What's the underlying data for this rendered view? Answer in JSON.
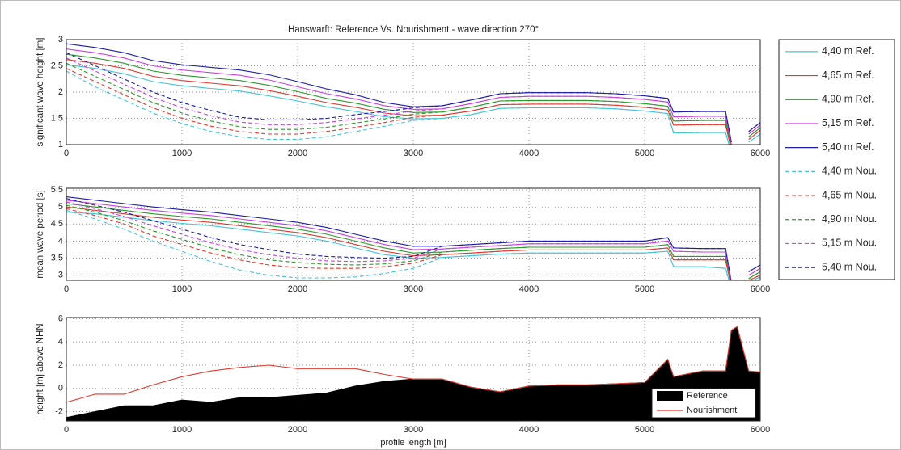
{
  "chart_data": [
    {
      "type": "line",
      "title": "Hanswarft: Reference Vs. Nourishment - wave direction 270°",
      "y_label": "significant wave height [m]",
      "legend": "outside right",
      "grid": true,
      "xlim": [
        0,
        6000
      ],
      "xticks": [
        0,
        1000,
        2000,
        3000,
        4000,
        5000,
        6000
      ],
      "ylim": [
        1,
        3
      ],
      "yticks": [
        1,
        1.5,
        2,
        2.5,
        3
      ],
      "x": [
        0,
        250,
        500,
        750,
        1000,
        1250,
        1500,
        1750,
        2000,
        2250,
        2500,
        2750,
        3000,
        3250,
        3500,
        3750,
        4000,
        4250,
        4500,
        4750,
        5000,
        5200,
        5250,
        5500,
        5700,
        5750,
        5800,
        5900,
        6000
      ],
      "series": [
        {
          "name": "4,40 m Ref.",
          "color": "#45c3dc",
          "line_style": "solid",
          "values": [
            2.52,
            2.45,
            2.35,
            2.2,
            2.12,
            2.07,
            2.02,
            1.93,
            1.83,
            1.72,
            1.63,
            1.53,
            1.49,
            1.5,
            1.57,
            1.69,
            1.7,
            1.7,
            1.7,
            1.68,
            1.64,
            1.59,
            1.22,
            1.23,
            1.23,
            0.85,
            null,
            1.05,
            1.2
          ]
        },
        {
          "name": "4,65 m Ref.",
          "color": "#e03a2e",
          "line_style": "solid",
          "values": [
            2.62,
            2.55,
            2.45,
            2.3,
            2.22,
            2.17,
            2.12,
            2.03,
            1.92,
            1.8,
            1.71,
            1.6,
            1.55,
            1.56,
            1.64,
            1.76,
            1.77,
            1.77,
            1.77,
            1.75,
            1.71,
            1.66,
            1.37,
            1.38,
            1.38,
            0.9,
            null,
            1.1,
            1.27
          ]
        },
        {
          "name": "4,90 m Ref.",
          "color": "#2a9a2a",
          "line_style": "solid",
          "values": [
            2.72,
            2.65,
            2.55,
            2.4,
            2.32,
            2.27,
            2.22,
            2.13,
            2.01,
            1.88,
            1.79,
            1.67,
            1.61,
            1.62,
            1.71,
            1.83,
            1.84,
            1.84,
            1.84,
            1.82,
            1.78,
            1.73,
            1.45,
            1.46,
            1.46,
            0.95,
            null,
            1.15,
            1.32
          ]
        },
        {
          "name": "5,15 m Ref.",
          "color": "#cc3ee0",
          "line_style": "solid",
          "values": [
            2.82,
            2.75,
            2.65,
            2.5,
            2.42,
            2.37,
            2.32,
            2.23,
            2.1,
            1.97,
            1.87,
            1.74,
            1.67,
            1.68,
            1.78,
            1.9,
            1.92,
            1.92,
            1.92,
            1.9,
            1.86,
            1.81,
            1.53,
            1.54,
            1.54,
            1.0,
            null,
            1.2,
            1.37
          ]
        },
        {
          "name": "5,40 m Ref.",
          "color": "#1c1ca8",
          "line_style": "solid",
          "values": [
            2.92,
            2.85,
            2.75,
            2.6,
            2.52,
            2.47,
            2.42,
            2.33,
            2.2,
            2.06,
            1.95,
            1.8,
            1.72,
            1.74,
            1.85,
            1.97,
            1.99,
            1.99,
            1.99,
            1.97,
            1.93,
            1.88,
            1.62,
            1.63,
            1.63,
            1.05,
            null,
            1.25,
            1.42
          ]
        },
        {
          "name": "4,40 m Nou.",
          "color": "#45c3dc",
          "line_style": "dashed",
          "values": [
            2.4,
            2.1,
            1.85,
            1.6,
            1.4,
            1.25,
            1.15,
            1.1,
            1.1,
            1.15,
            1.25,
            1.35,
            1.46,
            1.5,
            1.57,
            1.69,
            1.7,
            1.7,
            1.7,
            1.68,
            1.64,
            1.59,
            1.22,
            1.23,
            1.23,
            0.85,
            null,
            1.05,
            1.2
          ]
        },
        {
          "name": "4,65 m Nou.",
          "color": "#e03a2e",
          "line_style": "dashed",
          "values": [
            2.45,
            2.2,
            1.95,
            1.7,
            1.5,
            1.35,
            1.25,
            1.2,
            1.2,
            1.25,
            1.33,
            1.42,
            1.52,
            1.56,
            1.64,
            1.76,
            1.77,
            1.77,
            1.77,
            1.75,
            1.71,
            1.66,
            1.37,
            1.38,
            1.38,
            0.9,
            null,
            1.1,
            1.27
          ]
        },
        {
          "name": "4,90 m Nou.",
          "color": "#2a9a2a",
          "line_style": "dashed",
          "values": [
            2.55,
            2.3,
            2.05,
            1.8,
            1.6,
            1.45,
            1.34,
            1.29,
            1.29,
            1.33,
            1.41,
            1.49,
            1.58,
            1.62,
            1.71,
            1.83,
            1.84,
            1.84,
            1.84,
            1.82,
            1.78,
            1.73,
            1.45,
            1.46,
            1.46,
            0.95,
            null,
            1.15,
            1.32
          ]
        },
        {
          "name": "5,15 m Nou.",
          "color": "#cc3ee0",
          "line_style": "dashed",
          "values": [
            2.65,
            2.4,
            2.15,
            1.9,
            1.7,
            1.55,
            1.43,
            1.38,
            1.38,
            1.42,
            1.49,
            1.56,
            1.64,
            1.68,
            1.78,
            1.9,
            1.92,
            1.92,
            1.92,
            1.9,
            1.86,
            1.81,
            1.53,
            1.54,
            1.54,
            1.0,
            null,
            1.2,
            1.37
          ]
        },
        {
          "name": "5,40 m Nou.",
          "color": "#1c1ca8",
          "line_style": "dashed",
          "values": [
            2.75,
            2.5,
            2.25,
            2.0,
            1.8,
            1.65,
            1.52,
            1.47,
            1.47,
            1.5,
            1.57,
            1.63,
            1.7,
            1.74,
            1.85,
            1.97,
            1.99,
            1.99,
            1.99,
            1.97,
            1.93,
            1.88,
            1.62,
            1.63,
            1.63,
            1.05,
            null,
            1.25,
            1.42
          ]
        }
      ]
    },
    {
      "type": "line",
      "y_label": "mean wave period [s]",
      "grid": true,
      "xlim": [
        0,
        6000
      ],
      "xticks": [
        0,
        1000,
        2000,
        3000,
        4000,
        5000,
        6000
      ],
      "ylim": [
        2.85,
        5.55
      ],
      "yticks": [
        3,
        3.5,
        4,
        4.5,
        5,
        5.5
      ],
      "x": [
        0,
        250,
        500,
        750,
        1000,
        1250,
        1500,
        1750,
        2000,
        2250,
        2500,
        2750,
        3000,
        3250,
        3500,
        3750,
        4000,
        4250,
        4500,
        4750,
        5000,
        5200,
        5250,
        5500,
        5700,
        5750,
        5800,
        5900,
        6000
      ],
      "series": [
        {
          "color": "#45c3dc",
          "line_style": "solid",
          "values": [
            4.85,
            4.8,
            4.7,
            4.6,
            4.52,
            4.45,
            4.35,
            4.25,
            4.15,
            4.0,
            3.8,
            3.6,
            3.5,
            3.52,
            3.57,
            3.62,
            3.65,
            3.65,
            3.65,
            3.65,
            3.65,
            3.7,
            3.25,
            3.25,
            3.2,
            2.6,
            null,
            2.8,
            2.95
          ]
        },
        {
          "color": "#e03a2e",
          "line_style": "solid",
          "values": [
            5.0,
            4.9,
            4.8,
            4.7,
            4.62,
            4.55,
            4.45,
            4.35,
            4.25,
            4.1,
            3.9,
            3.7,
            3.57,
            3.6,
            3.65,
            3.7,
            3.74,
            3.74,
            3.74,
            3.74,
            3.74,
            3.8,
            3.45,
            3.45,
            3.45,
            2.65,
            null,
            2.85,
            3.0
          ]
        },
        {
          "color": "#2a9a2a",
          "line_style": "solid",
          "values": [
            5.1,
            5.0,
            4.9,
            4.8,
            4.72,
            4.65,
            4.55,
            4.45,
            4.35,
            4.2,
            4.0,
            3.8,
            3.65,
            3.68,
            3.73,
            3.78,
            3.82,
            3.82,
            3.82,
            3.82,
            3.82,
            3.9,
            3.55,
            3.55,
            3.55,
            2.7,
            null,
            2.9,
            3.1
          ]
        },
        {
          "color": "#cc3ee0",
          "line_style": "solid",
          "values": [
            5.2,
            5.1,
            5.0,
            4.9,
            4.82,
            4.75,
            4.65,
            4.55,
            4.45,
            4.3,
            4.1,
            3.9,
            3.75,
            3.77,
            3.82,
            3.87,
            3.92,
            3.92,
            3.92,
            3.92,
            3.92,
            4.0,
            3.7,
            3.68,
            3.68,
            2.75,
            null,
            3.0,
            3.2
          ]
        },
        {
          "color": "#1c1ca8",
          "line_style": "solid",
          "values": [
            5.3,
            5.2,
            5.1,
            5.0,
            4.92,
            4.85,
            4.75,
            4.65,
            4.55,
            4.4,
            4.2,
            4.0,
            3.85,
            3.85,
            3.9,
            3.95,
            4.0,
            4.0,
            4.0,
            4.0,
            4.0,
            4.1,
            3.8,
            3.78,
            3.78,
            2.8,
            null,
            3.1,
            3.3
          ]
        },
        {
          "color": "#45c3dc",
          "line_style": "dashed",
          "values": [
            4.9,
            4.65,
            4.35,
            4.0,
            3.7,
            3.4,
            3.15,
            3.0,
            2.92,
            2.92,
            2.95,
            3.05,
            3.2,
            3.52,
            3.57,
            3.62,
            3.65,
            3.65,
            3.65,
            3.65,
            3.65,
            3.7,
            3.25,
            3.25,
            3.2,
            2.6,
            null,
            2.8,
            2.95
          ]
        },
        {
          "color": "#e03a2e",
          "line_style": "dashed",
          "values": [
            4.95,
            4.75,
            4.5,
            4.15,
            3.9,
            3.65,
            3.45,
            3.3,
            3.22,
            3.2,
            3.2,
            3.25,
            3.35,
            3.6,
            3.65,
            3.7,
            3.74,
            3.74,
            3.74,
            3.74,
            3.74,
            3.8,
            3.45,
            3.45,
            3.45,
            2.65,
            null,
            2.85,
            3.0
          ]
        },
        {
          "color": "#2a9a2a",
          "line_style": "dashed",
          "values": [
            5.05,
            4.85,
            4.6,
            4.3,
            4.05,
            3.8,
            3.6,
            3.45,
            3.37,
            3.32,
            3.3,
            3.33,
            3.42,
            3.68,
            3.73,
            3.78,
            3.82,
            3.82,
            3.82,
            3.82,
            3.82,
            3.9,
            3.55,
            3.55,
            3.55,
            2.7,
            null,
            2.9,
            3.1
          ]
        },
        {
          "color": "#cc3ee0",
          "line_style": "dashed",
          "values": [
            5.15,
            4.95,
            4.72,
            4.45,
            4.2,
            3.95,
            3.75,
            3.6,
            3.5,
            3.42,
            3.4,
            3.42,
            3.5,
            3.77,
            3.82,
            3.87,
            3.92,
            3.92,
            3.92,
            3.92,
            3.92,
            4.0,
            3.7,
            3.68,
            3.68,
            2.75,
            null,
            3.0,
            3.2
          ]
        },
        {
          "color": "#1c1ca8",
          "line_style": "dashed",
          "values": [
            5.25,
            5.05,
            4.85,
            4.6,
            4.35,
            4.1,
            3.9,
            3.75,
            3.62,
            3.55,
            3.52,
            3.5,
            3.55,
            3.85,
            3.9,
            3.95,
            4.0,
            4.0,
            4.0,
            4.0,
            4.0,
            4.1,
            3.8,
            3.78,
            3.78,
            2.8,
            null,
            3.1,
            3.3
          ]
        }
      ]
    },
    {
      "type": "area",
      "y_label": "height [m] above NHN",
      "x_label": "profile length [m]",
      "legend": "lower right",
      "grid": true,
      "xlim": [
        0,
        6000
      ],
      "xticks": [
        0,
        1000,
        2000,
        3000,
        4000,
        5000,
        6000
      ],
      "ylim": [
        -2.8,
        6.1
      ],
      "yticks": [
        -2,
        0,
        2,
        4,
        6
      ],
      "x": [
        0,
        250,
        500,
        750,
        1000,
        1250,
        1500,
        1750,
        2000,
        2250,
        2500,
        2750,
        3000,
        3250,
        3500,
        3750,
        4000,
        4250,
        4500,
        4750,
        5000,
        5200,
        5250,
        5500,
        5700,
        5750,
        5800,
        5900,
        6000
      ],
      "series": [
        {
          "name": "Reference",
          "color": "#000000",
          "fill": true,
          "values": [
            -2.5,
            -2.0,
            -1.5,
            -1.5,
            -1.0,
            -1.2,
            -0.8,
            -0.8,
            -0.6,
            -0.4,
            0.2,
            0.6,
            0.8,
            0.8,
            0.1,
            -0.3,
            0.2,
            0.3,
            0.3,
            0.4,
            0.5,
            2.5,
            1.0,
            1.5,
            1.5,
            5.0,
            5.3,
            1.5,
            1.4
          ]
        },
        {
          "name": "Nourishment",
          "color": "#e03a2e",
          "fill": false,
          "values": [
            -1.2,
            -0.5,
            -0.5,
            0.3,
            1.0,
            1.5,
            1.8,
            2.0,
            1.7,
            1.7,
            1.7,
            1.2,
            0.8,
            0.8,
            0.1,
            -0.3,
            0.2,
            0.3,
            0.3,
            0.4,
            0.5,
            2.5,
            1.0,
            1.5,
            1.5,
            5.0,
            5.3,
            1.5,
            1.4
          ]
        }
      ]
    }
  ]
}
